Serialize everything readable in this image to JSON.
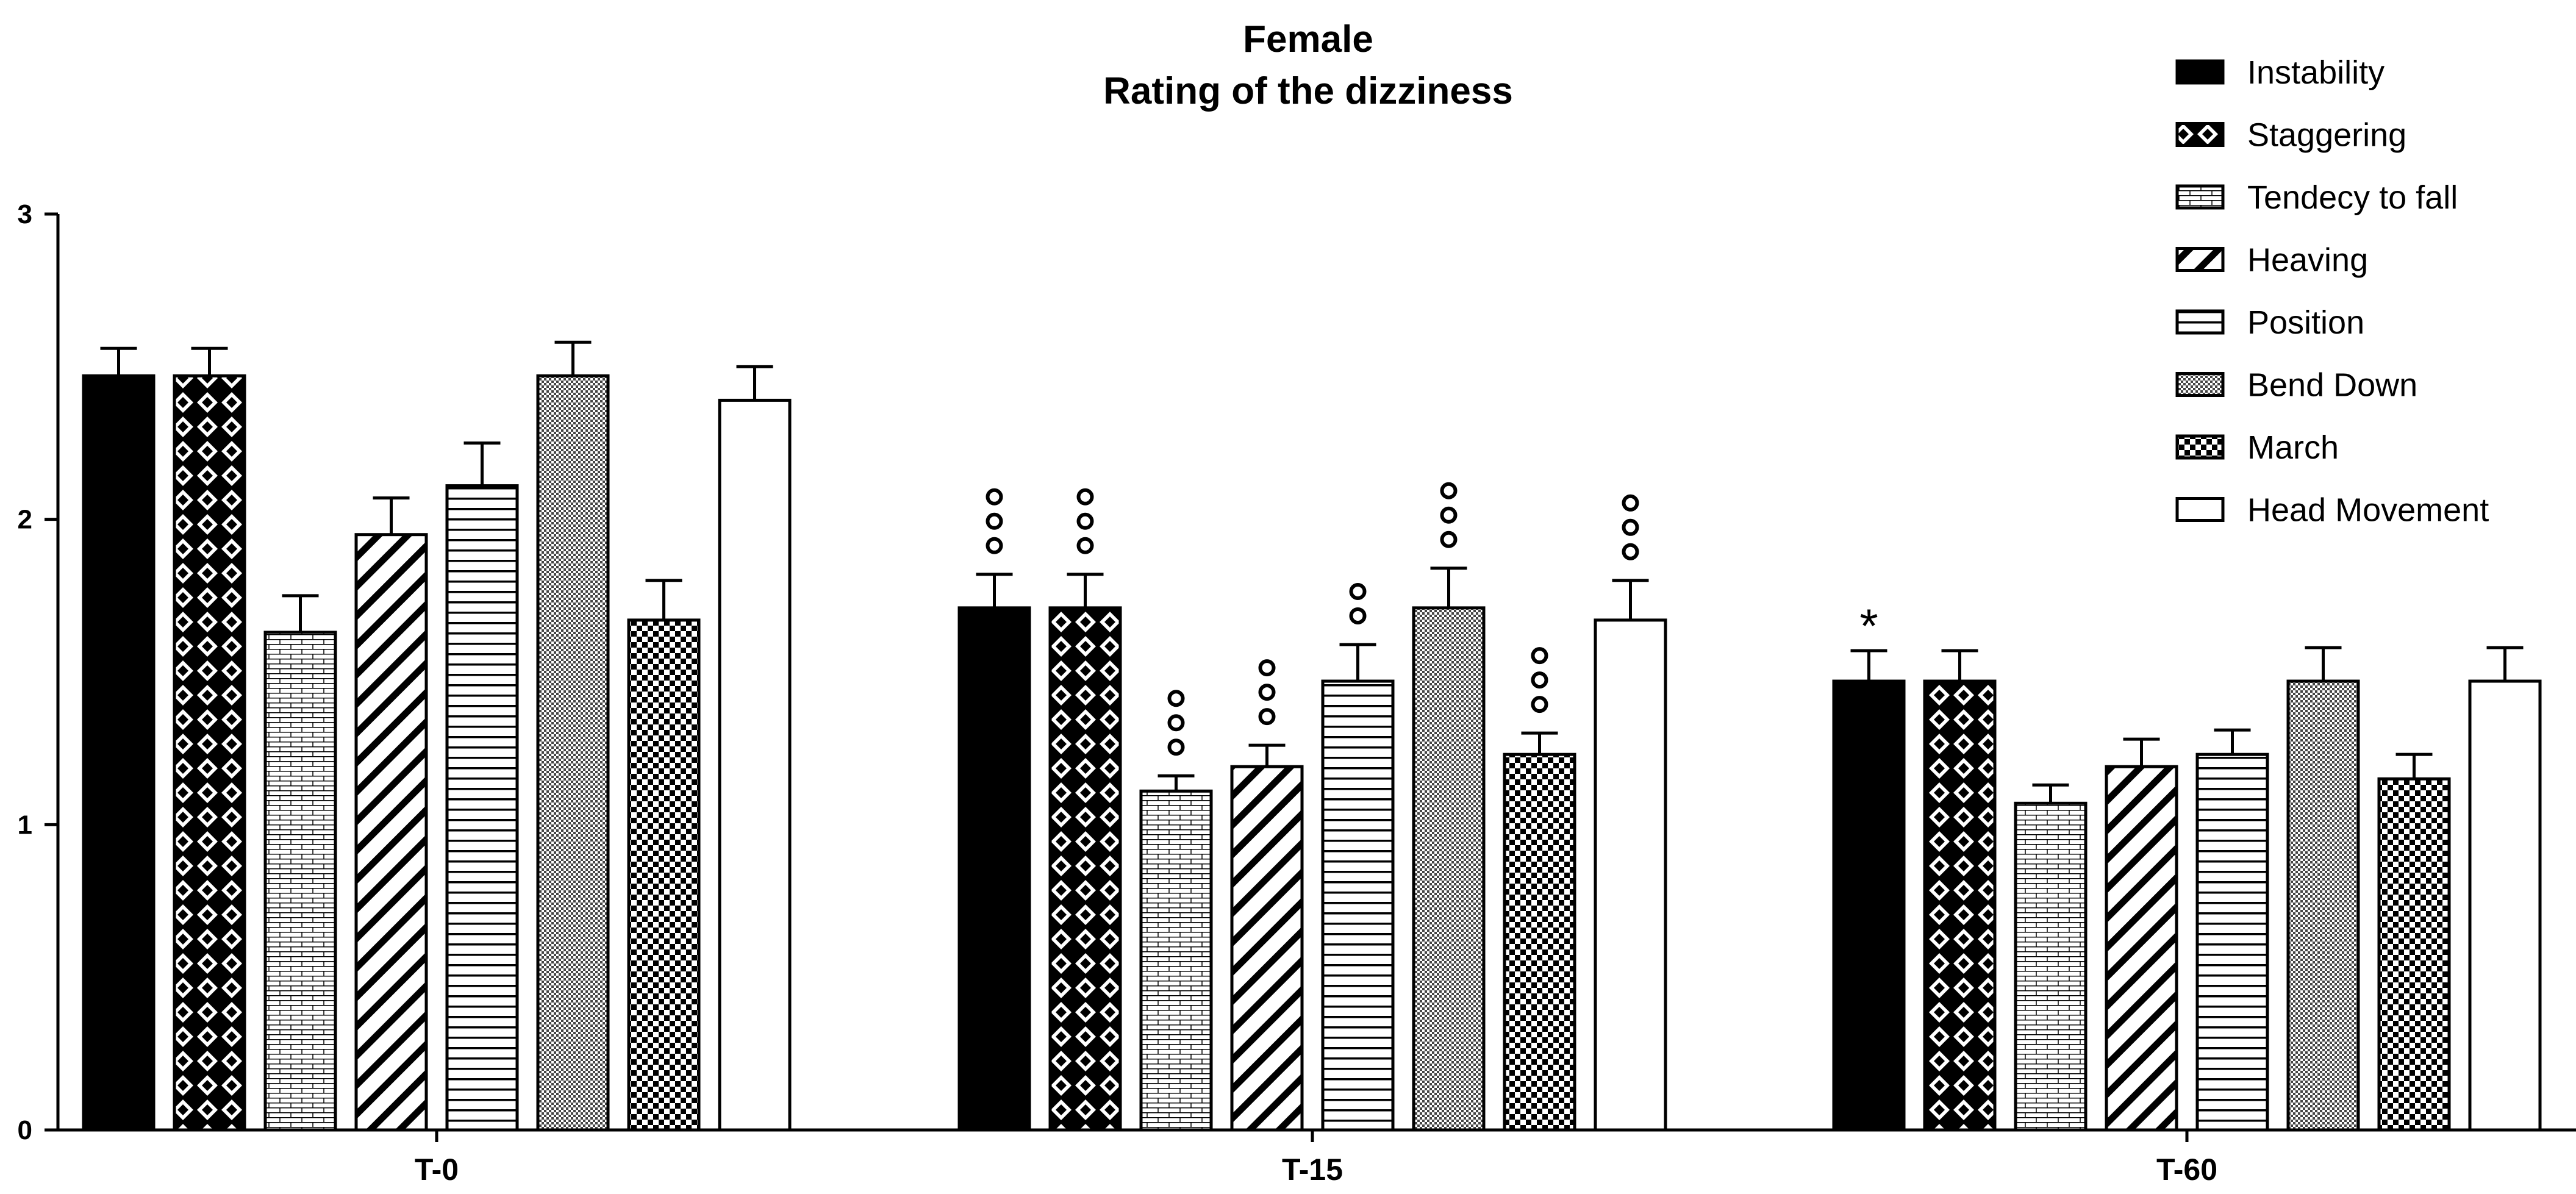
{
  "chart_data": {
    "type": "bar",
    "title": "Female",
    "subtitle": "Rating of the dizziness",
    "xlabel": "",
    "ylabel": "",
    "ylim": [
      0,
      3
    ],
    "yticks": [
      0,
      1,
      2,
      3
    ],
    "categories": [
      "T-0",
      "T-15",
      "T-60"
    ],
    "legend_position": "top-right",
    "series": [
      {
        "name": "Instability",
        "pattern": "solid",
        "values": [
          2.47,
          1.71,
          1.47
        ],
        "errors": [
          0.09,
          0.11,
          0.1
        ]
      },
      {
        "name": "Staggering",
        "pattern": "diamond-check",
        "values": [
          2.47,
          1.71,
          1.47
        ],
        "errors": [
          0.09,
          0.11,
          0.1
        ]
      },
      {
        "name": "Tendecy to fall",
        "pattern": "brick",
        "values": [
          1.63,
          1.11,
          1.07
        ],
        "errors": [
          0.12,
          0.05,
          0.06
        ]
      },
      {
        "name": "Heaving",
        "pattern": "diagonal",
        "values": [
          1.95,
          1.19,
          1.19
        ],
        "errors": [
          0.12,
          0.07,
          0.09
        ]
      },
      {
        "name": "Position",
        "pattern": "horizontal",
        "values": [
          2.11,
          1.47,
          1.23
        ],
        "errors": [
          0.14,
          0.12,
          0.08
        ]
      },
      {
        "name": "Bend Down",
        "pattern": "fine-check",
        "values": [
          2.47,
          1.71,
          1.47
        ],
        "errors": [
          0.11,
          0.13,
          0.11
        ]
      },
      {
        "name": "March",
        "pattern": "check",
        "values": [
          1.67,
          1.23,
          1.15
        ],
        "errors": [
          0.13,
          0.07,
          0.08
        ]
      },
      {
        "name": "Head Movement",
        "pattern": "open",
        "values": [
          2.39,
          1.67,
          1.47
        ],
        "errors": [
          0.11,
          0.13,
          0.11
        ]
      }
    ],
    "annotations": [
      {
        "series": 0,
        "category": 1,
        "symbol": "o",
        "count": 3
      },
      {
        "series": 1,
        "category": 1,
        "symbol": "o",
        "count": 3
      },
      {
        "series": 2,
        "category": 1,
        "symbol": "o",
        "count": 3
      },
      {
        "series": 3,
        "category": 1,
        "symbol": "o",
        "count": 3
      },
      {
        "series": 4,
        "category": 1,
        "symbol": "o",
        "count": 2
      },
      {
        "series": 5,
        "category": 1,
        "symbol": "o",
        "count": 3
      },
      {
        "series": 6,
        "category": 1,
        "symbol": "o",
        "count": 3
      },
      {
        "series": 7,
        "category": 1,
        "symbol": "o",
        "count": 3
      },
      {
        "series": 0,
        "category": 2,
        "symbol": "*",
        "count": 1
      }
    ]
  }
}
